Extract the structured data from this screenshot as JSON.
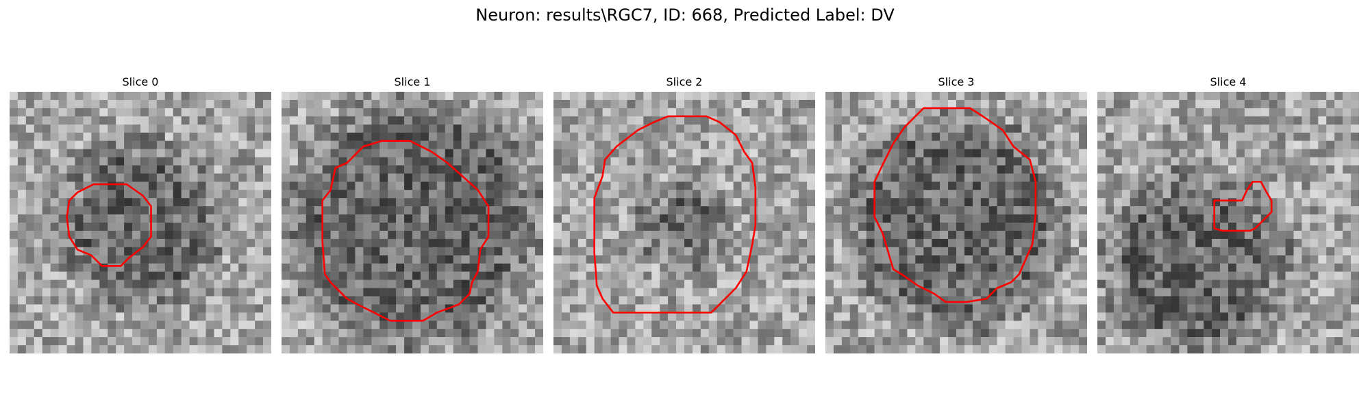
{
  "figure": {
    "title": "Neuron: results\\RGC7, ID: 668, Predicted Label: DV"
  },
  "contour_color": "#ff0000",
  "grid_size": 32,
  "slices": [
    {
      "title": "Slice 0",
      "seed": 11,
      "contour": [
        [
          10.3,
          11.3
        ],
        [
          14.3,
          11.3
        ],
        [
          16.3,
          12.7
        ],
        [
          17.3,
          14.0
        ],
        [
          17.3,
          17.7
        ],
        [
          16.3,
          19.0
        ],
        [
          14.6,
          20.3
        ],
        [
          13.6,
          21.3
        ],
        [
          11.3,
          21.3
        ],
        [
          10.0,
          20.0
        ],
        [
          8.3,
          19.3
        ],
        [
          7.3,
          17.7
        ],
        [
          7.0,
          15.3
        ],
        [
          7.3,
          13.3
        ],
        [
          8.3,
          12.3
        ]
      ],
      "dark_center": [
        16,
        16
      ],
      "dark_radius": 8
    },
    {
      "title": "Slice 1",
      "seed": 23,
      "contour": [
        [
          12.3,
          6.0
        ],
        [
          15.7,
          6.0
        ],
        [
          18.3,
          7.3
        ],
        [
          20.3,
          8.7
        ],
        [
          24.0,
          12.0
        ],
        [
          25.3,
          14.0
        ],
        [
          25.3,
          17.7
        ],
        [
          24.3,
          19.3
        ],
        [
          24.0,
          22.0
        ],
        [
          23.3,
          23.3
        ],
        [
          23.0,
          24.7
        ],
        [
          21.7,
          26.0
        ],
        [
          19.0,
          27.0
        ],
        [
          17.3,
          28.0
        ],
        [
          13.3,
          28.0
        ],
        [
          11.3,
          27.0
        ],
        [
          9.3,
          26.0
        ],
        [
          8.0,
          25.3
        ],
        [
          6.0,
          23.3
        ],
        [
          5.3,
          22.3
        ],
        [
          5.0,
          18.3
        ],
        [
          5.0,
          13.3
        ],
        [
          6.0,
          12.0
        ],
        [
          6.6,
          9.3
        ],
        [
          8.0,
          8.7
        ],
        [
          10.0,
          6.7
        ]
      ],
      "dark_center": [
        16,
        16
      ],
      "dark_radius": 13
    },
    {
      "title": "Slice 2",
      "seed": 37,
      "contour": [
        [
          14.0,
          3.0
        ],
        [
          18.7,
          3.0
        ],
        [
          20.3,
          3.7
        ],
        [
          22.3,
          5.3
        ],
        [
          23.3,
          7.3
        ],
        [
          24.3,
          8.7
        ],
        [
          24.7,
          11.7
        ],
        [
          24.7,
          16.3
        ],
        [
          24.3,
          18.7
        ],
        [
          23.6,
          22.0
        ],
        [
          22.3,
          24.0
        ],
        [
          20.6,
          25.7
        ],
        [
          19.3,
          27.0
        ],
        [
          7.3,
          27.0
        ],
        [
          6.0,
          25.3
        ],
        [
          5.3,
          23.7
        ],
        [
          5.0,
          19.7
        ],
        [
          5.0,
          15.3
        ],
        [
          5.0,
          13.0
        ],
        [
          6.0,
          10.3
        ],
        [
          6.3,
          8.3
        ],
        [
          7.7,
          6.7
        ],
        [
          10.3,
          4.7
        ],
        [
          12.3,
          3.7
        ]
      ],
      "dark_center": [
        16,
        16
      ],
      "dark_radius": 3
    },
    {
      "title": "Slice 3",
      "seed": 51,
      "contour": [
        [
          12.0,
          2.0
        ],
        [
          17.7,
          2.0
        ],
        [
          19.7,
          3.3
        ],
        [
          21.7,
          4.7
        ],
        [
          23.0,
          6.7
        ],
        [
          25.0,
          8.3
        ],
        [
          25.7,
          11.0
        ],
        [
          25.7,
          15.0
        ],
        [
          25.3,
          18.7
        ],
        [
          24.7,
          20.0
        ],
        [
          23.7,
          22.3
        ],
        [
          22.7,
          23.3
        ],
        [
          21.0,
          24.0
        ],
        [
          19.7,
          25.3
        ],
        [
          17.3,
          25.7
        ],
        [
          14.7,
          25.7
        ],
        [
          13.3,
          24.7
        ],
        [
          11.3,
          23.7
        ],
        [
          9.3,
          22.3
        ],
        [
          8.3,
          21.7
        ],
        [
          7.7,
          19.7
        ],
        [
          7.0,
          17.3
        ],
        [
          6.0,
          15.3
        ],
        [
          6.0,
          11.0
        ],
        [
          7.3,
          8.3
        ],
        [
          8.3,
          6.3
        ],
        [
          9.7,
          4.3
        ]
      ],
      "dark_center": [
        16,
        16
      ],
      "dark_radius": 11
    },
    {
      "title": "Slice 4",
      "seed": 67,
      "contour": [
        [
          19.0,
          11.0
        ],
        [
          20.0,
          11.0
        ],
        [
          20.7,
          12.3
        ],
        [
          21.3,
          13.3
        ],
        [
          21.3,
          14.7
        ],
        [
          20.3,
          15.7
        ],
        [
          19.3,
          16.7
        ],
        [
          18.7,
          17.0
        ],
        [
          15.3,
          17.0
        ],
        [
          14.3,
          16.7
        ],
        [
          14.3,
          13.3
        ],
        [
          15.7,
          13.3
        ],
        [
          17.7,
          13.3
        ],
        [
          18.3,
          12.0
        ]
      ],
      "dark_center": [
        12,
        21
      ],
      "dark_radius": 9
    }
  ]
}
